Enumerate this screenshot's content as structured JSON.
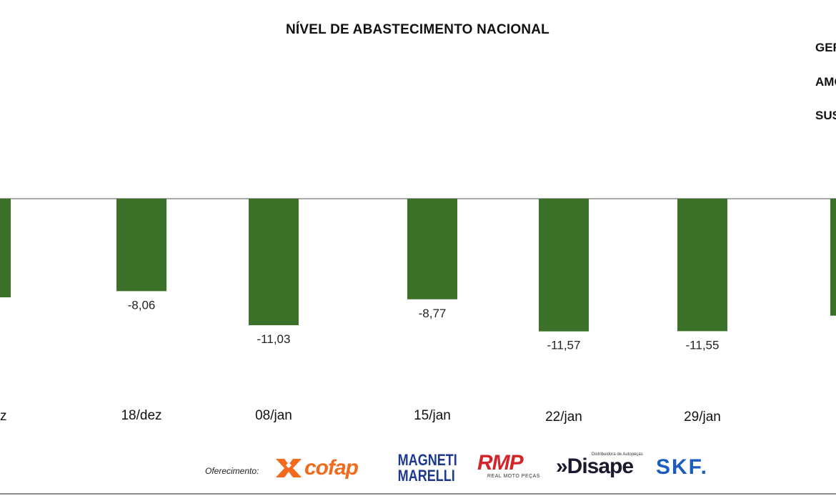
{
  "title": "NÍVEL DE ABASTECIMENTO NACIONAL",
  "side_labels": [
    "GER",
    "AMO",
    "SUS"
  ],
  "sponsor": {
    "label": "Oferecimento:",
    "logos": {
      "cofap": "cofap",
      "magneti_line1": "MAGNETI",
      "magneti_line2": "MARELLI",
      "rmp": "RMP",
      "rmp_sub": "REAL MOTO PEÇAS",
      "disape": "»Disape",
      "disape_sub": "Distribuidora de Autopeças",
      "skf": "SKF."
    }
  },
  "colors": {
    "bar": "#3b7128",
    "axis": "#8c8c8c",
    "cofap": "#f26b1d",
    "magneti": "#1d3a8f",
    "rmp": "#d3242a",
    "skf": "#1e5bbf"
  },
  "chart_data": {
    "type": "bar",
    "title": "NÍVEL DE ABASTECIMENTO NACIONAL",
    "categories": [
      "z",
      "18/dez",
      "08/jan",
      "15/jan",
      "22/jan",
      "29/jan",
      ""
    ],
    "values": [
      -8.6,
      -8.06,
      -11.03,
      -8.77,
      -11.57,
      -11.55,
      -10.2
    ],
    "value_labels": [
      "",
      "-8,06",
      "-11,03",
      "-8,77",
      "-11,57",
      "-11,55",
      ""
    ],
    "grid": false,
    "legend": "none"
  }
}
